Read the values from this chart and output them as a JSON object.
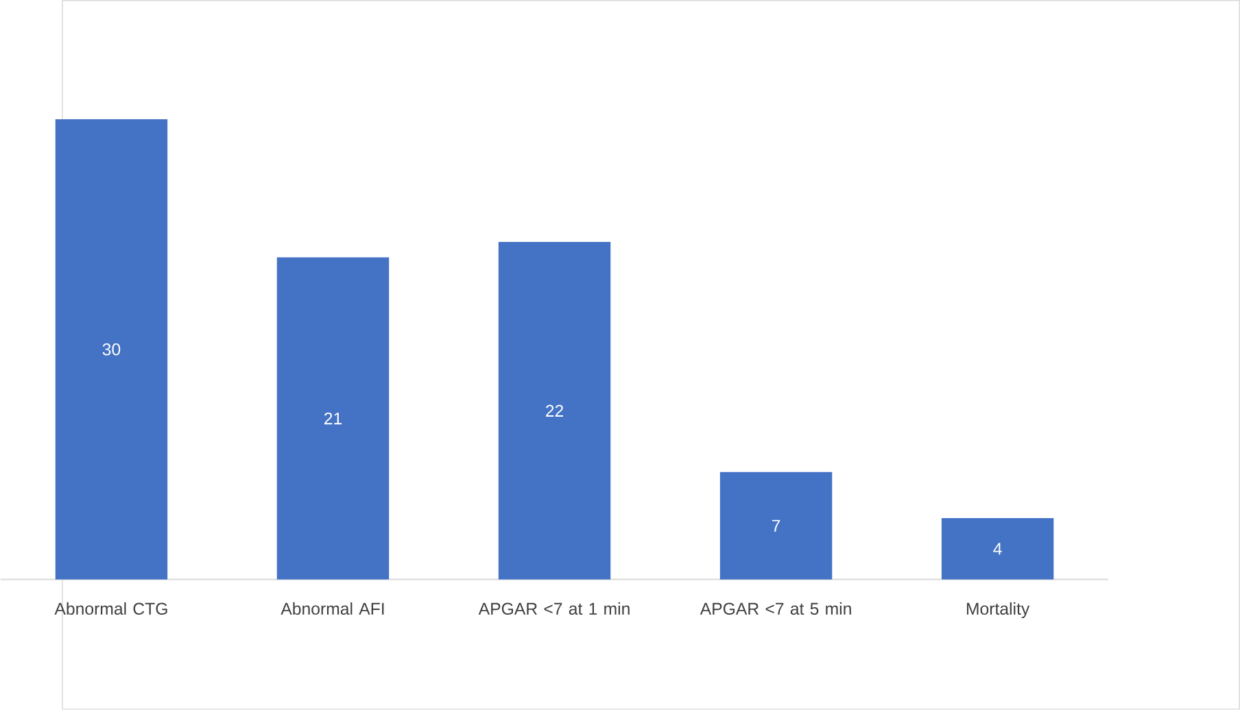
{
  "chart_data": {
    "type": "bar",
    "categories": [
      "Abnormal CTG",
      "Abnormal AFI",
      "APGAR <7 at 1 min",
      "APGAR <7 at 5 min",
      "Mortality"
    ],
    "values": [
      30,
      21,
      22,
      7,
      4
    ],
    "color": "#4472c4",
    "data_labels": true,
    "tick_labels": "x"
  }
}
